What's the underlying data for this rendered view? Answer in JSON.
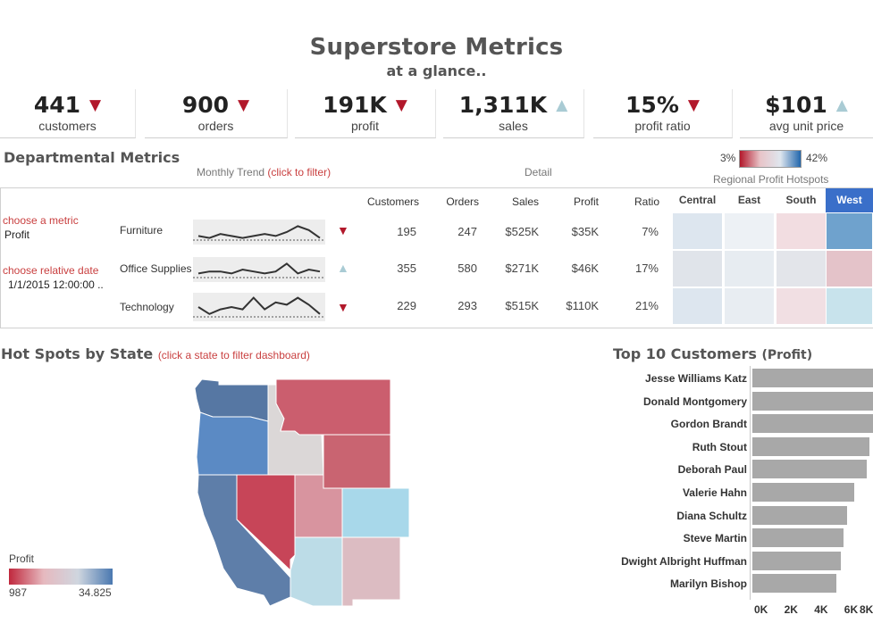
{
  "header": {
    "title": "Superstore Metrics",
    "subtitle": "at a glance.."
  },
  "kpis": [
    {
      "value": "441",
      "label": "customers",
      "trend": "▼",
      "dir": "down"
    },
    {
      "value": "900",
      "label": "orders",
      "trend": "▼",
      "dir": "down"
    },
    {
      "value": "191K",
      "label": "profit",
      "trend": "▼",
      "dir": "down"
    },
    {
      "value": "1,311K",
      "label": "sales",
      "trend": "▲",
      "dir": "up"
    },
    {
      "value": "15%",
      "label": "profit ratio",
      "trend": "▼",
      "dir": "down"
    },
    {
      "value": "$101",
      "label": "avg unit price",
      "trend": "▲",
      "dir": "up"
    }
  ],
  "departmental": {
    "title": "Departmental Metrics",
    "trend_label": "Monthly Trend",
    "trend_hint": "(click to filter)",
    "detail_label": "Detail",
    "hotspots_label": "Regional Profit Hotspots",
    "legend_min": "3%",
    "legend_max": "42%",
    "metric_label": "choose a metric",
    "metric_value": "Profit",
    "date_label": "choose relative date",
    "date_value": "1/1/2015 12:00:00 ..",
    "columns": [
      "Customers",
      "Orders",
      "Sales",
      "Profit",
      "Ratio"
    ],
    "regions": [
      "Central",
      "East",
      "South",
      "West"
    ],
    "active_region": "West",
    "rows": [
      {
        "name": "Furniture",
        "trend": "▼",
        "dir": "down",
        "customers": "195",
        "orders": "247",
        "sales": "$525K",
        "profit": "$35K",
        "ratio": "7%",
        "spark": [
          3,
          2,
          4,
          3,
          2,
          3,
          4,
          3,
          5,
          8,
          6,
          2
        ],
        "heat": [
          "#dde6ef",
          "#edf1f5",
          "#f2dde1",
          "#6fa2cd"
        ]
      },
      {
        "name": "Office Supplies",
        "trend": "▲",
        "dir": "up",
        "customers": "355",
        "orders": "580",
        "sales": "$271K",
        "profit": "$46K",
        "ratio": "17%",
        "spark": [
          3,
          4,
          4,
          3,
          5,
          4,
          3,
          4,
          8,
          3,
          5,
          4
        ],
        "heat": [
          "#e0e4ea",
          "#e7ecf1",
          "#e3e5ea",
          "#e4c3c9"
        ]
      },
      {
        "name": "Technology",
        "trend": "▼",
        "dir": "down",
        "customers": "229",
        "orders": "293",
        "sales": "$515K",
        "profit": "$110K",
        "ratio": "21%",
        "spark": [
          5,
          2,
          4,
          5,
          4,
          9,
          4,
          7,
          6,
          9,
          6,
          2
        ],
        "heat": [
          "#dde6ef",
          "#e8edf2",
          "#f1dfe3",
          "#c8e3ec"
        ]
      }
    ]
  },
  "map": {
    "title": "Hot Spots by State",
    "hint": "(click a state to filter dashboard)",
    "legend_title": "Profit",
    "legend_min": "987",
    "legend_max": "34.825",
    "states": [
      {
        "name": "Washington",
        "color": "#5677a3"
      },
      {
        "name": "Oregon",
        "color": "#5b8ac4"
      },
      {
        "name": "California",
        "color": "#5e7ea9"
      },
      {
        "name": "Idaho",
        "color": "#dbd7d7"
      },
      {
        "name": "Nevada",
        "color": "#c74558"
      },
      {
        "name": "Montana",
        "color": "#cb5e6e"
      },
      {
        "name": "Wyoming",
        "color": "#c96471"
      },
      {
        "name": "Utah",
        "color": "#d8949f"
      },
      {
        "name": "Colorado",
        "color": "#a8d8ea"
      },
      {
        "name": "Arizona",
        "color": "#bcdce7"
      },
      {
        "name": "New Mexico",
        "color": "#dcbcc2"
      }
    ]
  },
  "top_customers": {
    "title": "Top 10 Customers",
    "subtitle": "(Profit)",
    "customers": [
      {
        "name": "Jesse Williams Katz",
        "value": 8.6
      },
      {
        "name": "Donald Montgomery",
        "value": 8.4
      },
      {
        "name": "Gordon Brandt",
        "value": 8.3
      },
      {
        "name": "Ruth Stout",
        "value": 7.8
      },
      {
        "name": "Deborah Paul",
        "value": 7.6
      },
      {
        "name": "Valerie Hahn",
        "value": 6.8
      },
      {
        "name": "Diana Schultz",
        "value": 6.3
      },
      {
        "name": "Steve Martin",
        "value": 6.1
      },
      {
        "name": "Dwight Albright Huffman",
        "value": 5.9
      },
      {
        "name": "Marilyn Bishop",
        "value": 5.6
      }
    ],
    "ticks": [
      "0K",
      "2K",
      "4K",
      "6K",
      "8K"
    ]
  }
}
